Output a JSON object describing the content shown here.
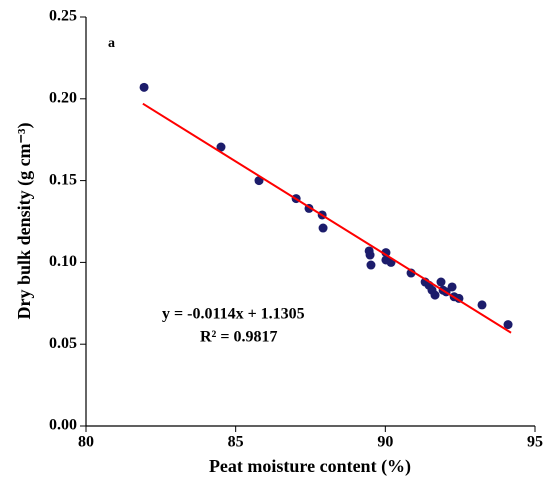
{
  "chart_data": {
    "type": "scatter",
    "panel_label": "a",
    "xlabel": "Peat moisture content (%)",
    "ylabel": "Dry bulk density (g cm⁻³)",
    "annotations": [
      "y = -0.0114x + 1.1305",
      "R² = 0.9817"
    ],
    "xlim": [
      80,
      95
    ],
    "xticks": [
      80,
      85,
      90,
      95
    ],
    "ylim": [
      0,
      0.25
    ],
    "yticks": [
      {
        "value": 0,
        "label": "0.00"
      },
      {
        "value": 0.05,
        "label": "0.05"
      },
      {
        "value": 0.1,
        "label": "0.10"
      },
      {
        "value": 0.15,
        "label": "0.15"
      },
      {
        "value": 0.2,
        "label": "0.20"
      },
      {
        "value": 0.25,
        "label": "0.25"
      }
    ],
    "series": [
      {
        "color": "#1c1c6b",
        "x": [
          81.94,
          84.51,
          85.78,
          87.02,
          87.45,
          87.89,
          87.92,
          89.46,
          89.49,
          89.52,
          90.02,
          90.02,
          90.19,
          90.86,
          91.33,
          91.46,
          91.56,
          91.66,
          91.86,
          91.93,
          92.03,
          92.23,
          92.3,
          92.46,
          93.23,
          94.1
        ],
        "values": [
          0.207,
          0.1705,
          0.15,
          0.139,
          0.133,
          0.129,
          0.121,
          0.107,
          0.1045,
          0.0984,
          0.106,
          0.1015,
          0.1,
          0.0935,
          0.088,
          0.086,
          0.083,
          0.08,
          0.088,
          0.083,
          0.082,
          0.085,
          0.079,
          0.078,
          0.074,
          0.062
        ]
      },
      {
        "type": "line",
        "color": "#ff0000",
        "x": [
          81.9,
          94.2
        ],
        "values": [
          0.197,
          0.057
        ]
      }
    ]
  }
}
